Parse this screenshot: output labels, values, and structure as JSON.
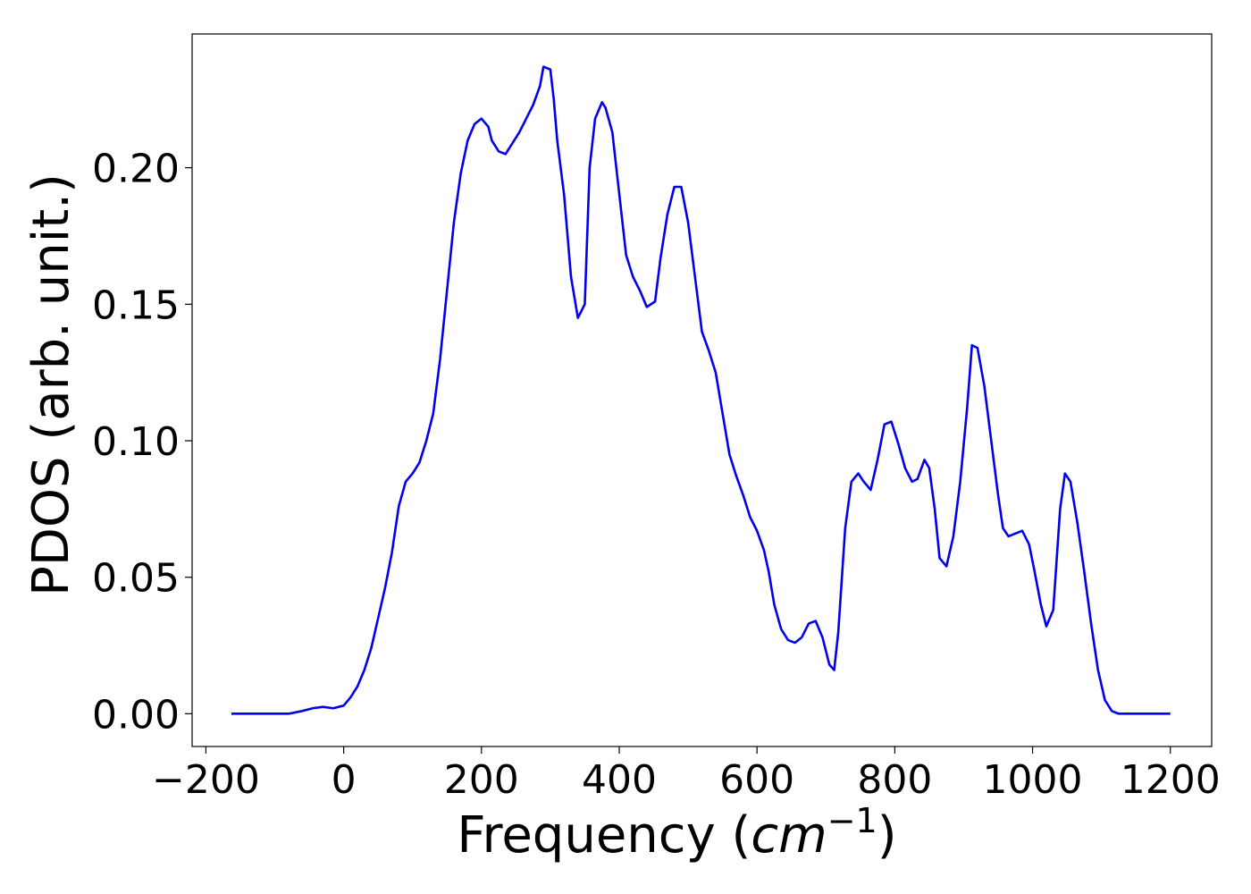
{
  "chart_data": {
    "type": "line",
    "title": "",
    "xlabel_prefix": "Frequency (",
    "xlabel_math": "cm",
    "xlabel_exp": "−1",
    "xlabel_suffix": ")",
    "ylabel": "PDOS (arb. unit.)",
    "xlim": [
      -220,
      1260
    ],
    "ylim": [
      -0.012,
      0.249
    ],
    "x_ticks": [
      -200,
      0,
      200,
      400,
      600,
      800,
      1000,
      1200
    ],
    "x_tick_labels": [
      "−200",
      "0",
      "200",
      "400",
      "600",
      "800",
      "1000",
      "1200"
    ],
    "y_ticks": [
      0.0,
      0.05,
      0.1,
      0.15,
      0.2
    ],
    "y_tick_labels": [
      "0.00",
      "0.05",
      "0.10",
      "0.15",
      "0.20"
    ],
    "grid": false,
    "series": [
      {
        "color": "#0000ee",
        "x": [
          -163,
          -120,
          -80,
          -60,
          -45,
          -30,
          -15,
          0,
          10,
          20,
          30,
          40,
          50,
          60,
          70,
          80,
          90,
          100,
          110,
          120,
          130,
          140,
          150,
          160,
          170,
          180,
          190,
          200,
          210,
          215,
          225,
          235,
          245,
          255,
          265,
          275,
          285,
          290,
          300,
          305,
          310,
          320,
          330,
          340,
          350,
          357,
          365,
          375,
          380,
          390,
          398,
          410,
          420,
          430,
          440,
          452,
          460,
          470,
          480,
          490,
          500,
          510,
          520,
          530,
          540,
          550,
          560,
          570,
          580,
          590,
          600,
          610,
          617,
          625,
          635,
          645,
          655,
          665,
          675,
          685,
          695,
          705,
          712,
          718,
          728,
          737,
          747,
          755,
          765,
          775,
          785,
          795,
          805,
          815,
          825,
          833,
          843,
          850,
          858,
          865,
          875,
          885,
          895,
          905,
          912,
          920,
          930,
          940,
          950,
          957,
          965,
          975,
          985,
          995,
          1003,
          1012,
          1020,
          1030,
          1040,
          1047,
          1055,
          1065,
          1075,
          1085,
          1095,
          1105,
          1115,
          1125,
          1150,
          1200
        ],
        "y": [
          0.0,
          0.0,
          0.0,
          0.001,
          0.002,
          0.0025,
          0.002,
          0.003,
          0.006,
          0.01,
          0.016,
          0.024,
          0.035,
          0.046,
          0.059,
          0.076,
          0.085,
          0.088,
          0.092,
          0.1,
          0.11,
          0.13,
          0.155,
          0.18,
          0.198,
          0.21,
          0.216,
          0.218,
          0.215,
          0.21,
          0.206,
          0.205,
          0.209,
          0.213,
          0.218,
          0.223,
          0.23,
          0.237,
          0.236,
          0.225,
          0.21,
          0.19,
          0.16,
          0.145,
          0.15,
          0.2,
          0.218,
          0.224,
          0.222,
          0.213,
          0.195,
          0.168,
          0.16,
          0.155,
          0.149,
          0.151,
          0.167,
          0.183,
          0.193,
          0.193,
          0.18,
          0.16,
          0.14,
          0.133,
          0.125,
          0.11,
          0.095,
          0.087,
          0.08,
          0.072,
          0.067,
          0.06,
          0.052,
          0.04,
          0.031,
          0.027,
          0.026,
          0.028,
          0.033,
          0.034,
          0.028,
          0.018,
          0.016,
          0.03,
          0.068,
          0.085,
          0.088,
          0.085,
          0.082,
          0.093,
          0.106,
          0.107,
          0.099,
          0.09,
          0.085,
          0.086,
          0.093,
          0.09,
          0.075,
          0.057,
          0.054,
          0.065,
          0.085,
          0.112,
          0.135,
          0.134,
          0.12,
          0.1,
          0.08,
          0.068,
          0.065,
          0.066,
          0.067,
          0.062,
          0.052,
          0.04,
          0.032,
          0.038,
          0.075,
          0.088,
          0.085,
          0.07,
          0.052,
          0.033,
          0.016,
          0.005,
          0.001,
          0.0,
          0.0,
          0.0
        ]
      }
    ]
  }
}
